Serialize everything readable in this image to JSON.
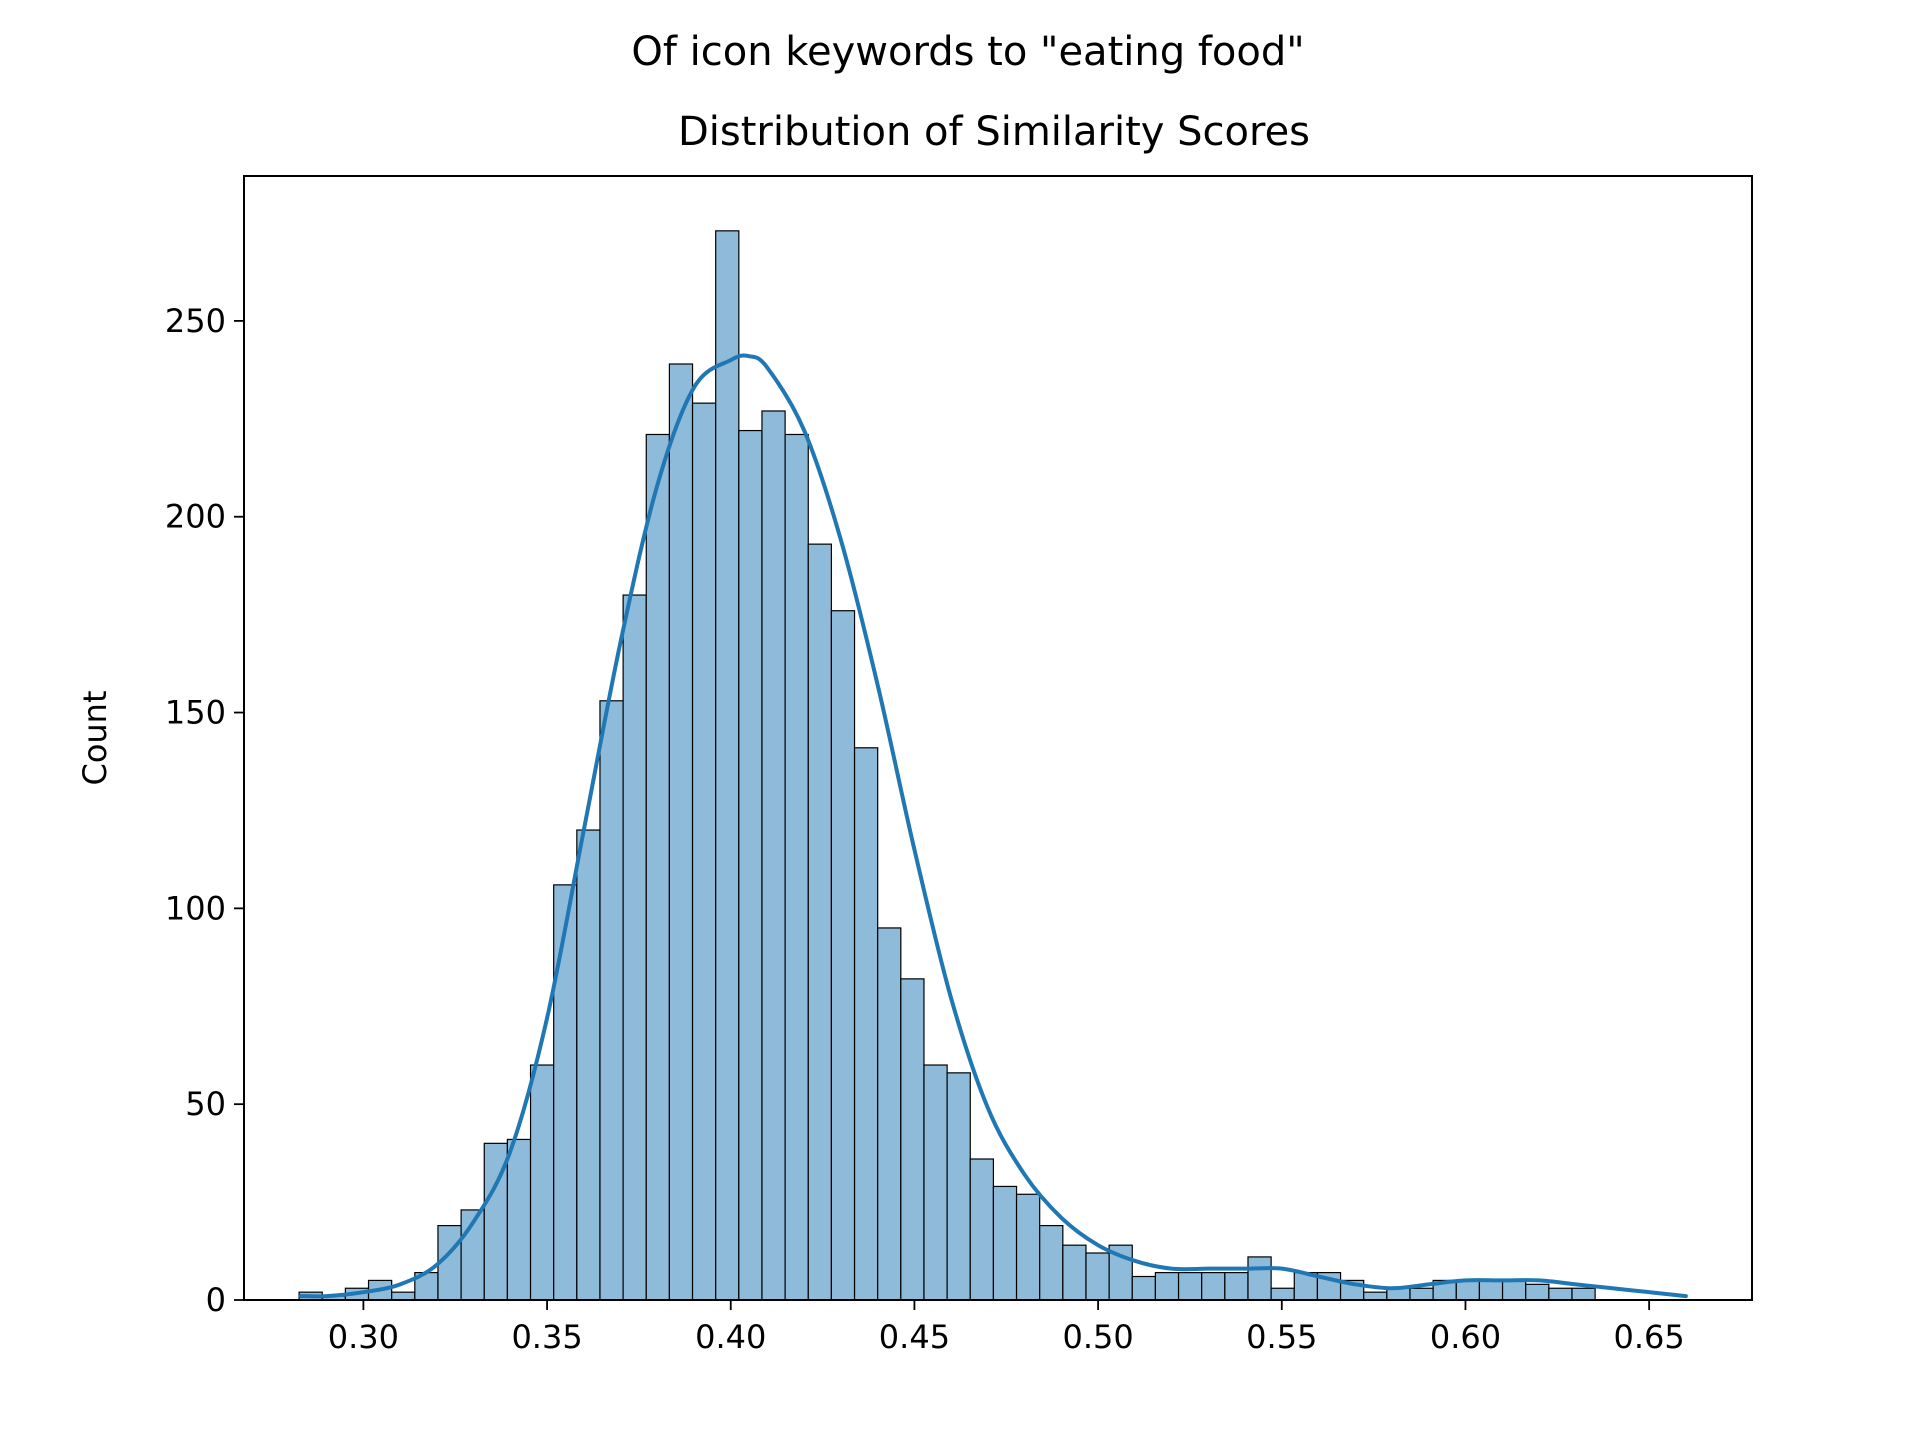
{
  "chart_data": {
    "type": "bar",
    "suptitle": "Of icon keywords to \"eating food\"",
    "title": "Distribution of Similarity Scores",
    "xlabel": "",
    "ylabel": "Count",
    "xlim": [
      0.2675,
      0.678
    ],
    "ylim": [
      0,
      287
    ],
    "xticks": [
      0.3,
      0.35,
      0.4,
      0.45,
      0.5,
      0.55,
      0.6,
      0.65
    ],
    "xtick_labels": [
      "0.30",
      "0.35",
      "0.40",
      "0.45",
      "0.50",
      "0.55",
      "0.60",
      "0.65"
    ],
    "yticks": [
      0,
      50,
      100,
      150,
      200,
      250
    ],
    "ytick_labels": [
      "0",
      "50",
      "100",
      "150",
      "200",
      "250"
    ],
    "grid": false,
    "bin_start": 0.2825,
    "bin_width": 0.0063,
    "counts": [
      2,
      1,
      3,
      5,
      2,
      7,
      19,
      23,
      40,
      41,
      60,
      106,
      120,
      153,
      180,
      221,
      239,
      229,
      273,
      222,
      227,
      221,
      193,
      176,
      141,
      95,
      82,
      60,
      58,
      36,
      29,
      27,
      19,
      14,
      12,
      14,
      6,
      7,
      7,
      7,
      7,
      11,
      3,
      7,
      7,
      5,
      2,
      3,
      3,
      5,
      5,
      5,
      5,
      4,
      3,
      3,
      0
    ],
    "kde": {
      "x": [
        0.283,
        0.29,
        0.3,
        0.31,
        0.32,
        0.33,
        0.34,
        0.35,
        0.36,
        0.37,
        0.38,
        0.39,
        0.4,
        0.405,
        0.41,
        0.42,
        0.43,
        0.44,
        0.45,
        0.46,
        0.47,
        0.48,
        0.49,
        0.5,
        0.51,
        0.52,
        0.53,
        0.54,
        0.55,
        0.56,
        0.57,
        0.58,
        0.59,
        0.6,
        0.61,
        0.62,
        0.63,
        0.64,
        0.65,
        0.66
      ],
      "y": [
        1,
        1,
        2,
        4,
        9,
        20,
        38,
        72,
        120,
        168,
        208,
        233,
        240,
        241,
        238,
        222,
        194,
        157,
        115,
        77,
        49,
        32,
        21,
        14,
        10,
        8,
        8,
        8,
        8,
        6,
        4,
        3,
        4,
        5,
        5,
        5,
        4,
        3,
        2,
        1
      ]
    },
    "bar_color": "#8fbbda",
    "line_color": "#1f77b4"
  }
}
